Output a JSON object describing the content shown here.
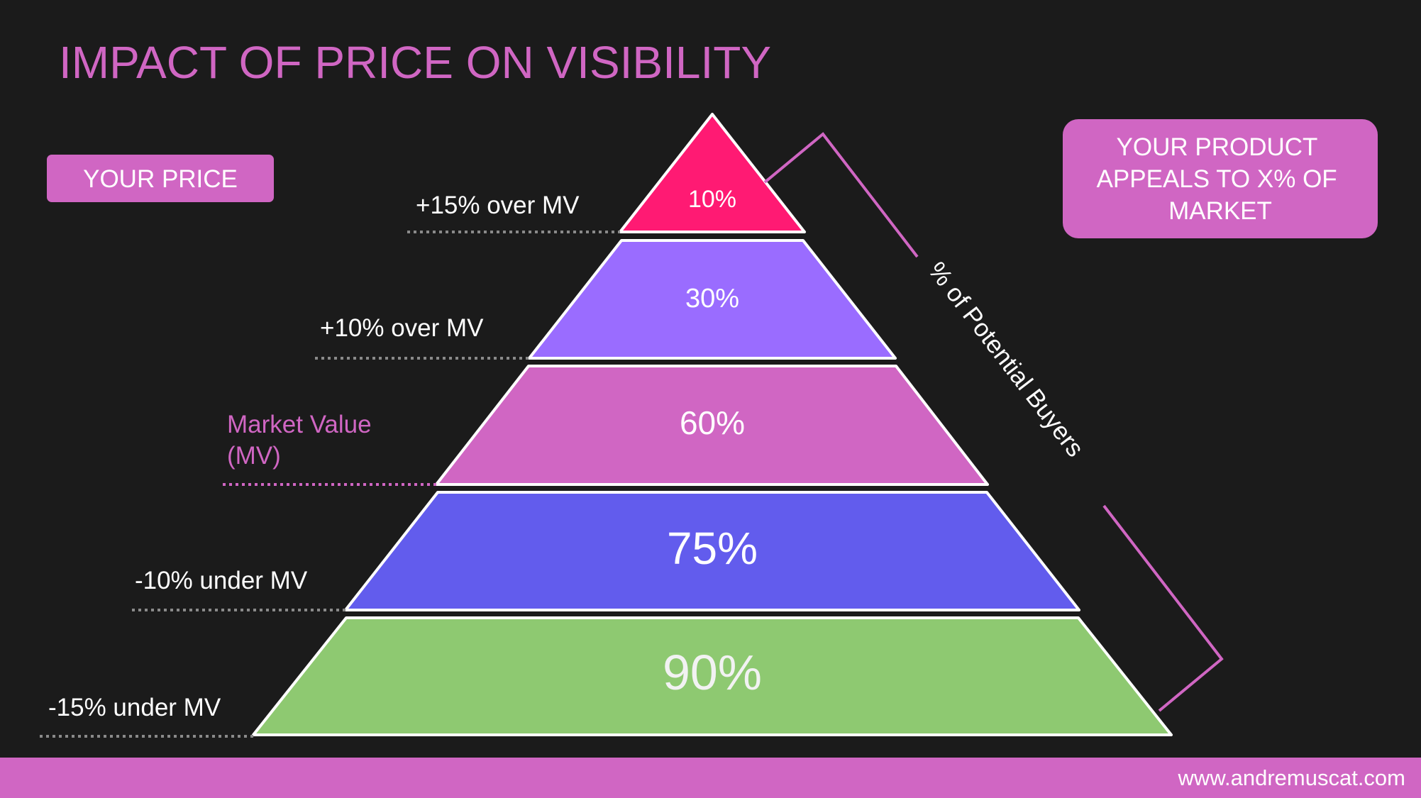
{
  "title": "IMPACT OF PRICE ON VISIBILITY",
  "price_badge": "YOUR PRICE",
  "market_badge": "YOUR PRODUCT APPEALS TO X% OF MARKET",
  "market_badge_lines": [
    "YOUR PRODUCT",
    "APPEALS TO X% OF",
    "MARKET"
  ],
  "brace_label": "% of Potential Buyers",
  "footer_url": "www.andremuscat.com",
  "colors": {
    "background": "#1b1b1b",
    "accent": "#d066c3",
    "level_1": "#ff1a73",
    "level_2": "#9a6cff",
    "level_3": "#d066c3",
    "level_4": "#625ced",
    "level_5": "#8ec971"
  },
  "levels": [
    {
      "value": "10%",
      "price_label": "+15% over MV",
      "fill": "#ff1a73"
    },
    {
      "value": "30%",
      "price_label": "+10% over MV",
      "fill": "#9a6cff"
    },
    {
      "value": "60%",
      "price_label": "Market Value",
      "price_label_2": "(MV)",
      "fill": "#d066c3",
      "highlight": true
    },
    {
      "value": "75%",
      "price_label": "-10% under MV",
      "fill": "#625ced"
    },
    {
      "value": "90%",
      "price_label": "-15% under MV",
      "fill": "#8ec971"
    }
  ]
}
